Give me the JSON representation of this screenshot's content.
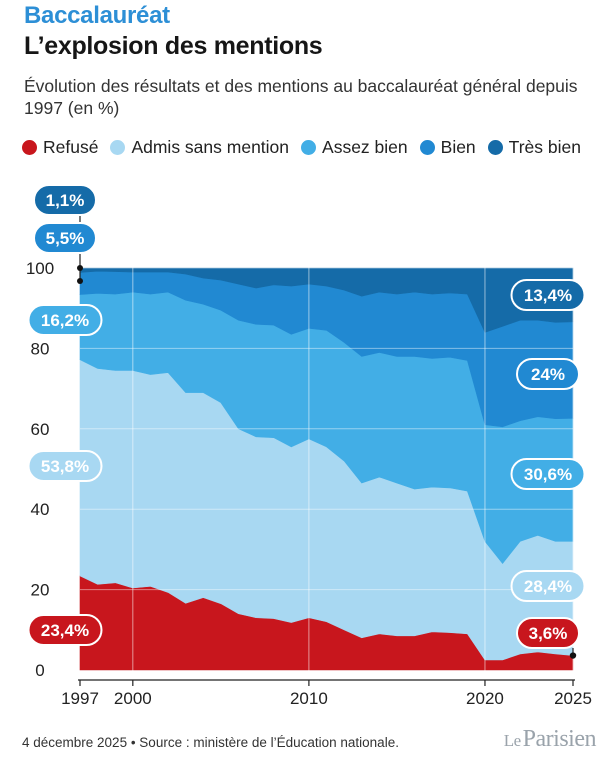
{
  "kicker": "Baccalauréat",
  "title": "L’explosion des mentions",
  "subtitle": "Évolution des résultats et des mentions au baccalauréat général depuis 1997 (en %)",
  "footer": "4 décembre 2025 • Source : ministère de l’Éducation nationale.",
  "logo": {
    "le": "Le",
    "name": "Parisien"
  },
  "colors": {
    "refuse": "#c8161d",
    "admis": "#a8d8f2",
    "assez_bien": "#42aee6",
    "bien": "#2189d2",
    "tres_bien": "#156ba8"
  },
  "chart_data": {
    "type": "area",
    "stacked": true,
    "xlim": [
      1997,
      2025
    ],
    "ylim": [
      0,
      100
    ],
    "x_ticks": [
      1997,
      2000,
      2010,
      2020,
      2025
    ],
    "y_ticks": [
      0,
      20,
      40,
      60,
      80,
      100
    ],
    "legend_position": "top",
    "x": [
      1997,
      1998,
      1999,
      2000,
      2001,
      2002,
      2003,
      2004,
      2005,
      2006,
      2007,
      2008,
      2009,
      2010,
      2011,
      2012,
      2013,
      2014,
      2015,
      2016,
      2017,
      2018,
      2019,
      2020,
      2021,
      2022,
      2023,
      2024,
      2025
    ],
    "series": [
      {
        "name": "Refusé",
        "color_key": "refuse",
        "values": [
          23.4,
          21.3,
          21.7,
          20.4,
          20.8,
          19.3,
          16.6,
          18,
          16.5,
          14,
          13,
          12.8,
          11.8,
          13,
          12,
          10,
          8,
          9,
          8.5,
          8.5,
          9.5,
          9.3,
          9,
          2.5,
          2.5,
          4,
          4.5,
          4,
          3.6
        ]
      },
      {
        "name": "Admis sans mention",
        "color_key": "admis",
        "values": [
          53.8,
          53.7,
          52.8,
          54.1,
          52.7,
          54.7,
          52.4,
          51,
          50,
          46,
          45,
          45,
          43.7,
          44.5,
          43.5,
          42,
          38.5,
          39,
          38,
          36.5,
          36,
          36,
          35.5,
          29.5,
          24,
          28,
          29,
          28,
          28.4
        ]
      },
      {
        "name": "Assez bien",
        "color_key": "assez_bien",
        "values": [
          16.2,
          18.7,
          19,
          19.5,
          20,
          20,
          23,
          22,
          23,
          27,
          28,
          28,
          28,
          27.5,
          29,
          29.5,
          31.5,
          31,
          31.5,
          33,
          32,
          32.5,
          32.5,
          29,
          34,
          30,
          29.5,
          30.5,
          30.6
        ]
      },
      {
        "name": "Bien",
        "color_key": "bien",
        "values": [
          5.5,
          5.5,
          5.6,
          5,
          5.5,
          5,
          6.5,
          6.5,
          7.5,
          9,
          9,
          10,
          12,
          11,
          11,
          13,
          15,
          15,
          15.5,
          16,
          16,
          16,
          16.5,
          23,
          25,
          25,
          24,
          24,
          24
        ]
      },
      {
        "name": "Très bien",
        "color_key": "tres_bien",
        "values": [
          1.1,
          0.8,
          0.9,
          1,
          1,
          1,
          1.5,
          2.5,
          3,
          4,
          5,
          4.2,
          4.5,
          4,
          4.5,
          5.5,
          7,
          6,
          6.5,
          6,
          6.5,
          6.2,
          6.5,
          16,
          14.5,
          13,
          13,
          13.5,
          13.4
        ]
      }
    ],
    "labels_1997": [
      {
        "series": "Très bien",
        "text": "1,1%"
      },
      {
        "series": "Bien",
        "text": "5,5%"
      },
      {
        "series": "Assez bien",
        "text": "16,2%"
      },
      {
        "series": "Admis sans mention",
        "text": "53,8%"
      },
      {
        "series": "Refusé",
        "text": "23,4%"
      }
    ],
    "labels_2025": [
      {
        "series": "Très bien",
        "text": "13,4%"
      },
      {
        "series": "Bien",
        "text": "24%"
      },
      {
        "series": "Assez bien",
        "text": "30,6%"
      },
      {
        "series": "Admis sans mention",
        "text": "28,4%"
      },
      {
        "series": "Refusé",
        "text": "3,6%"
      }
    ]
  }
}
